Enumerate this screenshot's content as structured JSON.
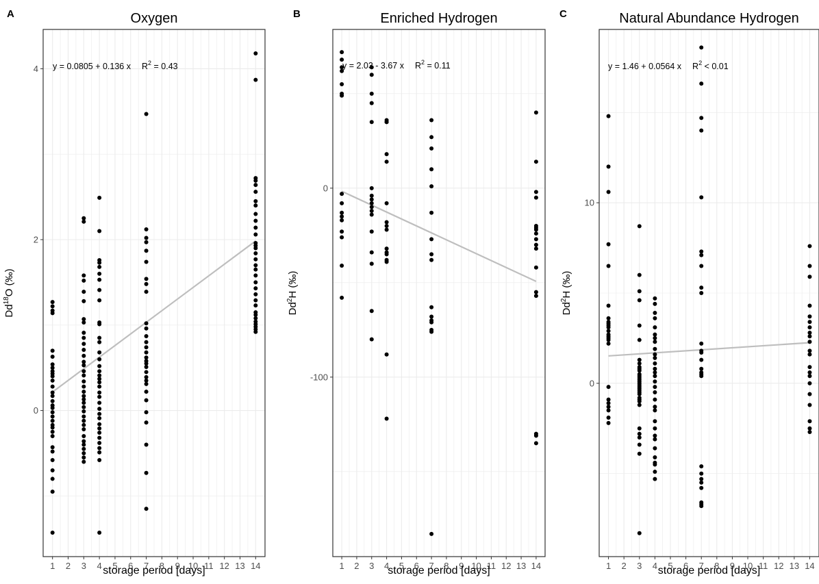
{
  "colors": {
    "points": "#000000",
    "fit_line": "#bebebe",
    "panel_border": "#333333",
    "grid": "#ebebeb",
    "tick_label": "#4d4d4d"
  },
  "chart_data": [
    {
      "type": "scatter",
      "tag": "A",
      "title": "Oxygen",
      "xlabel": "storage period [days]",
      "ylabel": {
        "base": "Dd",
        "sup": "18",
        "rest": "O (‰)"
      },
      "xticks": [
        1,
        2,
        3,
        4,
        5,
        6,
        7,
        8,
        9,
        10,
        11,
        12,
        13,
        14
      ],
      "yticks": [
        0,
        2,
        4
      ],
      "xlim": [
        0.4,
        14.6
      ],
      "ylim": [
        -1.71,
        4.46
      ],
      "grid": true,
      "equation": {
        "lhs": "y = 0.0805 + 0.136 x",
        "r2_label": "R",
        "r2_sup": "2",
        "r2_value": " = 0.43"
      },
      "fit": {
        "intercept": 0.0805,
        "slope": 0.136,
        "x_range": [
          1,
          14
        ]
      },
      "series": [
        {
          "x": [
            1,
            1,
            1,
            1,
            1,
            1,
            1,
            1,
            1,
            1,
            1,
            1,
            1,
            1,
            1,
            1,
            1,
            1,
            1,
            1,
            1,
            1,
            1,
            1,
            1,
            1,
            1,
            1,
            1,
            1,
            1,
            1,
            3,
            3,
            3,
            3,
            3,
            3,
            3,
            3,
            3,
            3,
            3,
            3,
            3,
            3,
            3,
            3,
            3,
            3,
            3,
            3,
            3,
            3,
            3,
            3,
            3,
            3,
            3,
            3,
            3,
            3,
            3,
            3,
            3,
            3,
            3,
            3,
            4,
            4,
            4,
            4,
            4,
            4,
            4,
            4,
            4,
            4,
            4,
            4,
            4,
            4,
            4,
            4,
            4,
            4,
            4,
            4,
            4,
            4,
            4,
            4,
            4,
            4,
            4,
            4,
            4,
            4,
            4,
            4,
            4,
            4,
            4,
            4,
            7,
            7,
            7,
            7,
            7,
            7,
            7,
            7,
            7,
            7,
            7,
            7,
            7,
            7,
            7,
            7,
            7,
            7,
            7,
            7,
            7,
            7,
            7,
            7,
            7,
            7,
            7,
            7,
            7,
            7,
            14,
            14,
            14,
            14,
            14,
            14,
            14,
            14,
            14,
            14,
            14,
            14,
            14,
            14,
            14,
            14,
            14,
            14,
            14,
            14,
            14,
            14,
            14,
            14,
            14,
            14,
            14,
            14,
            14,
            14,
            14,
            14,
            14
          ],
          "y": [
            1.27,
            1.22,
            1.17,
            1.14,
            0.7,
            0.63,
            0.54,
            0.5,
            0.46,
            0.43,
            0.4,
            0.35,
            0.28,
            0.21,
            0.17,
            0.11,
            0.06,
            0.03,
            -0.02,
            -0.07,
            -0.12,
            -0.17,
            -0.2,
            -0.25,
            -0.3,
            -0.43,
            -0.48,
            -0.58,
            -0.7,
            -0.8,
            -0.95,
            -1.43,
            2.25,
            2.21,
            1.58,
            1.52,
            1.39,
            1.28,
            1.07,
            1.03,
            0.91,
            0.85,
            0.78,
            0.71,
            0.64,
            0.57,
            0.53,
            0.46,
            0.41,
            0.34,
            0.28,
            0.22,
            0.17,
            0.13,
            0.09,
            0.04,
            -0.01,
            -0.07,
            -0.12,
            -0.17,
            -0.22,
            -0.3,
            -0.36,
            -0.4,
            -0.45,
            -0.5,
            -0.55,
            -0.6,
            2.49,
            2.1,
            1.76,
            1.73,
            1.68,
            1.6,
            1.53,
            1.41,
            1.29,
            1.03,
            1.01,
            0.85,
            0.8,
            0.68,
            0.6,
            0.52,
            0.46,
            0.41,
            0.37,
            0.33,
            0.28,
            0.21,
            0.16,
            0.09,
            0.02,
            -0.04,
            -0.09,
            -0.16,
            -0.21,
            -0.26,
            -0.32,
            -0.38,
            -0.44,
            -0.49,
            -0.58,
            -1.43,
            3.47,
            2.12,
            2.02,
            1.97,
            1.87,
            1.74,
            1.54,
            1.48,
            1.39,
            1.02,
            0.96,
            0.87,
            0.8,
            0.74,
            0.68,
            0.62,
            0.58,
            0.55,
            0.51,
            0.45,
            0.39,
            0.35,
            0.31,
            0.22,
            0.12,
            -0.02,
            -0.14,
            -0.4,
            -0.73,
            -1.15,
            4.18,
            3.87,
            2.72,
            2.69,
            2.64,
            2.56,
            2.45,
            2.4,
            2.3,
            2.22,
            2.14,
            2.06,
            1.96,
            1.93,
            1.9,
            1.84,
            1.77,
            1.7,
            1.65,
            1.58,
            1.5,
            1.43,
            1.36,
            1.29,
            1.23,
            1.15,
            1.12,
            1.08,
            1.04,
            1.01,
            0.98,
            0.95,
            0.92
          ]
        }
      ]
    },
    {
      "type": "scatter",
      "tag": "B",
      "title": "Enriched Hydrogen",
      "xlabel": "storage period [days]",
      "ylabel": {
        "base": "Dd",
        "sup": "2",
        "rest": "H (‰)"
      },
      "xticks": [
        1,
        2,
        3,
        4,
        5,
        6,
        7,
        8,
        9,
        10,
        11,
        12,
        13,
        14
      ],
      "yticks": [
        0,
        -100
      ],
      "xlim": [
        0.4,
        14.6
      ],
      "ylim": [
        -195,
        84
      ],
      "grid": true,
      "equation": {
        "lhs": "y = 2.03 - 3.67 x",
        "r2_label": "R",
        "r2_sup": "2",
        "r2_value": " = 0.11"
      },
      "fit": {
        "intercept": 2.03,
        "slope": -3.67,
        "x_range": [
          1,
          14
        ]
      },
      "series": [
        {
          "x": [
            1,
            1,
            1,
            1,
            1,
            1,
            1,
            1,
            1,
            1,
            1,
            1,
            1,
            1,
            1,
            1,
            3,
            3,
            3,
            3,
            3,
            3,
            3,
            3,
            3,
            3,
            3,
            3,
            3,
            3,
            3,
            3,
            3,
            4,
            4,
            4,
            4,
            4,
            4,
            4,
            4,
            4,
            4,
            4,
            4,
            4,
            4,
            4,
            4,
            7,
            7,
            7,
            7,
            7,
            7,
            7,
            7,
            7,
            7,
            7,
            7,
            7,
            7,
            7,
            7,
            14,
            14,
            14,
            14,
            14,
            14,
            14,
            14,
            14,
            14,
            14,
            14,
            14,
            14,
            14,
            14,
            14
          ],
          "y": [
            72,
            68,
            64,
            55,
            50,
            -3,
            -8,
            -13,
            -15,
            -17,
            -23,
            -26,
            -41,
            -58,
            62,
            49,
            64,
            60,
            50,
            45,
            35,
            0,
            -4,
            -6,
            -10,
            -14,
            -23,
            -34,
            -40,
            -65,
            -80,
            -8,
            -12,
            36,
            35,
            18,
            14,
            -8,
            -18,
            -20,
            -22,
            -32,
            -34,
            -38,
            -39,
            -88,
            -122,
            35,
            -35,
            36,
            27,
            21,
            10,
            1,
            -13,
            -27,
            -35,
            -38,
            -63,
            -68,
            -70,
            -71,
            -76,
            -183,
            -75,
            40,
            14,
            -2,
            -5,
            -20,
            -21,
            -22,
            -24,
            -27,
            -30,
            -32,
            -42,
            -55,
            -57,
            -130,
            -131,
            -135
          ]
        }
      ]
    },
    {
      "type": "scatter",
      "tag": "C",
      "title": "Natural Abundance Hydrogen",
      "xlabel": "storage period [days]",
      "ylabel": {
        "base": "Dd",
        "sup": "2",
        "rest": "H (‰)"
      },
      "xticks": [
        1,
        2,
        3,
        4,
        5,
        6,
        7,
        8,
        9,
        10,
        11,
        12,
        13,
        14
      ],
      "yticks": [
        0,
        10
      ],
      "xlim": [
        0.4,
        14.6
      ],
      "ylim": [
        -9.6,
        19.6
      ],
      "grid": true,
      "equation": {
        "lhs": "y = 1.46 + 0.0564 x",
        "r2_label": "R",
        "r2_sup": "2",
        "r2_value": " < 0.01"
      },
      "fit": {
        "intercept": 1.46,
        "slope": 0.0564,
        "x_range": [
          1,
          14
        ]
      },
      "series": [
        {
          "x": [
            1,
            1,
            1,
            1,
            1,
            1,
            1,
            1,
            1,
            1,
            1,
            1,
            1,
            1,
            1,
            1,
            1,
            1,
            1,
            1,
            1,
            1,
            1,
            1,
            3,
            3,
            3,
            3,
            3,
            3,
            3,
            3,
            3,
            3,
            3,
            3,
            3,
            3,
            3,
            3,
            3,
            3,
            3,
            3,
            3,
            3,
            3,
            3,
            3,
            3,
            3,
            3,
            3,
            3,
            3,
            3,
            3,
            4,
            4,
            4,
            4,
            4,
            4,
            4,
            4,
            4,
            4,
            4,
            4,
            4,
            4,
            4,
            4,
            4,
            4,
            4,
            4,
            4,
            4,
            4,
            4,
            4,
            4,
            4,
            4,
            4,
            4,
            4,
            7,
            7,
            7,
            7,
            7,
            7,
            7,
            7,
            7,
            7,
            7,
            7,
            7,
            7,
            7,
            7,
            7,
            7,
            7,
            7,
            7,
            7,
            7,
            7,
            7,
            7,
            14,
            14,
            14,
            14,
            14,
            14,
            14,
            14,
            14,
            14,
            14,
            14,
            14,
            14,
            14,
            14,
            14,
            14,
            14,
            14,
            14
          ],
          "y": [
            14.8,
            12.0,
            10.6,
            7.7,
            6.5,
            4.3,
            3.6,
            3.4,
            3.3,
            3.2,
            3.1,
            2.9,
            2.7,
            2.6,
            2.5,
            2.4,
            2.2,
            -0.2,
            -0.9,
            -1.1,
            -1.3,
            -1.5,
            -1.9,
            -2.2,
            8.7,
            6.0,
            5.1,
            4.6,
            3.2,
            2.4,
            1.3,
            1.1,
            0.9,
            0.8,
            0.7,
            0.5,
            0.4,
            0.3,
            0.2,
            0.1,
            0.0,
            -0.1,
            -0.2,
            -0.3,
            -0.4,
            -0.5,
            -0.6,
            -0.8,
            -0.9,
            -1.0,
            -1.2,
            -2.5,
            -2.8,
            -3.0,
            -3.4,
            -3.9,
            -8.3,
            4.7,
            4.4,
            3.9,
            3.6,
            3.1,
            2.7,
            2.5,
            2.3,
            1.9,
            1.6,
            1.4,
            1.1,
            0.8,
            0.6,
            0.4,
            0.1,
            -0.2,
            -0.5,
            -0.9,
            -1.3,
            -1.5,
            -2.1,
            -2.5,
            -2.9,
            -3.1,
            -3.6,
            -4.1,
            -4.4,
            -4.5,
            -4.9,
            -5.3,
            18.6,
            16.6,
            14.7,
            14.0,
            10.3,
            7.3,
            7.1,
            6.5,
            5.3,
            5.0,
            2.2,
            1.8,
            1.7,
            1.3,
            0.8,
            0.6,
            0.5,
            0.4,
            -4.6,
            -5.0,
            -5.3,
            -5.5,
            -5.8,
            -6.6,
            -6.7,
            -6.8,
            7.6,
            6.5,
            5.9,
            4.3,
            3.7,
            3.4,
            3.1,
            2.8,
            2.6,
            2.3,
            1.8,
            1.6,
            0.9,
            0.6,
            0.4,
            0.0,
            -0.6,
            -1.2,
            -2.1,
            -2.5,
            -2.7
          ]
        }
      ]
    }
  ]
}
